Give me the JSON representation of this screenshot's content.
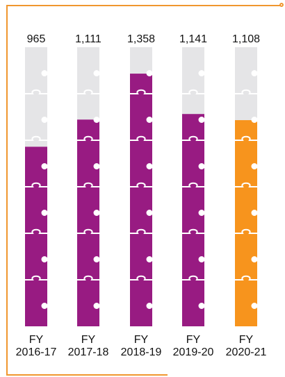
{
  "colors": {
    "frame": "#f0962e",
    "empty": "#e5e5e7",
    "filled": "#981b82",
    "highlight": "#f7941d",
    "piece_line": "#ffffff"
  },
  "chart_data": {
    "type": "bar",
    "style": "puzzle-piece columns",
    "categories": [
      "FY 2016-17",
      "FY 2017-18",
      "FY 2018-19",
      "FY 2019-20",
      "FY 2020-21"
    ],
    "category_lines": [
      [
        "FY",
        "2016-17"
      ],
      [
        "FY",
        "2017-18"
      ],
      [
        "FY",
        "2018-19"
      ],
      [
        "FY",
        "2019-20"
      ],
      [
        "FY",
        "2020-21"
      ]
    ],
    "values": [
      965,
      1111,
      1358,
      1141,
      1108
    ],
    "value_labels": [
      "965",
      "1,111",
      "1,358",
      "1,141",
      "1,108"
    ],
    "highlight_index": 4,
    "ylim": [
      0,
      1500
    ]
  }
}
